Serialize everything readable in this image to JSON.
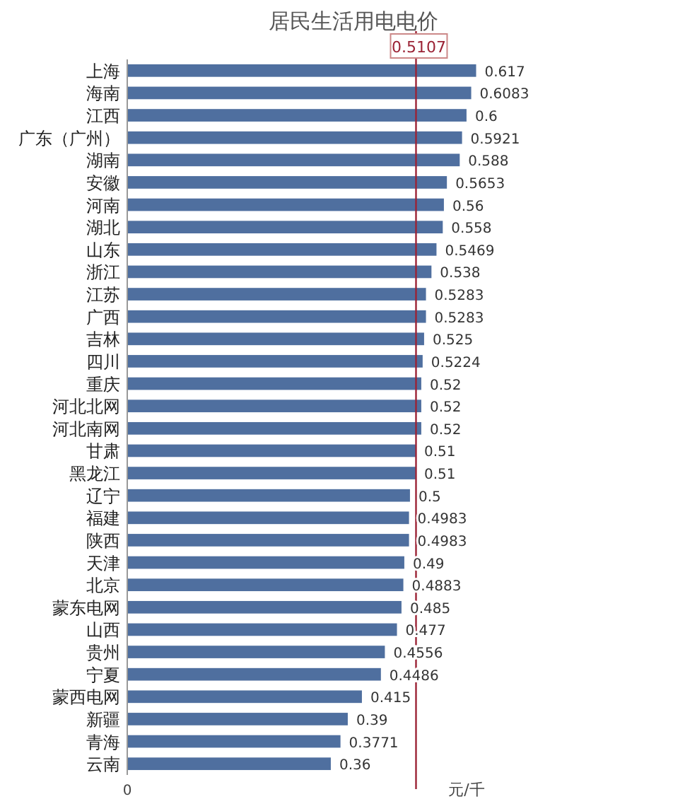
{
  "chart_data": {
    "type": "bar",
    "orientation": "horizontal",
    "title": "居民生活用电电价",
    "xlabel": "元/千",
    "categories": [
      "上海",
      "海南",
      "江西",
      "广东（广州）",
      "湖南",
      "安徽",
      "河南",
      "湖北",
      "山东",
      "浙江",
      "江苏",
      "广西",
      "吉林",
      "四川",
      "重庆",
      "河北北网",
      "河北南网",
      "甘肃",
      "黑龙江",
      "辽宁",
      "福建",
      "陕西",
      "天津",
      "北京",
      "蒙东电网",
      "山西",
      "贵州",
      "宁夏",
      "蒙西电网",
      "新疆",
      "青海",
      "云南"
    ],
    "values": [
      0.617,
      0.6083,
      0.6,
      0.5921,
      0.588,
      0.5653,
      0.56,
      0.558,
      0.5469,
      0.538,
      0.5283,
      0.5283,
      0.525,
      0.5224,
      0.52,
      0.52,
      0.52,
      0.51,
      0.51,
      0.5,
      0.4983,
      0.4983,
      0.49,
      0.4883,
      0.485,
      0.477,
      0.4556,
      0.4486,
      0.415,
      0.39,
      0.3771,
      0.36
    ],
    "color": "#4f6f9f",
    "annotations": [
      "0"
    ],
    "ref_lines": [
      {
        "axis": "x",
        "value": 0.5107,
        "label": "0.5107",
        "color": "#9b2335"
      }
    ],
    "data_labels": true
  }
}
